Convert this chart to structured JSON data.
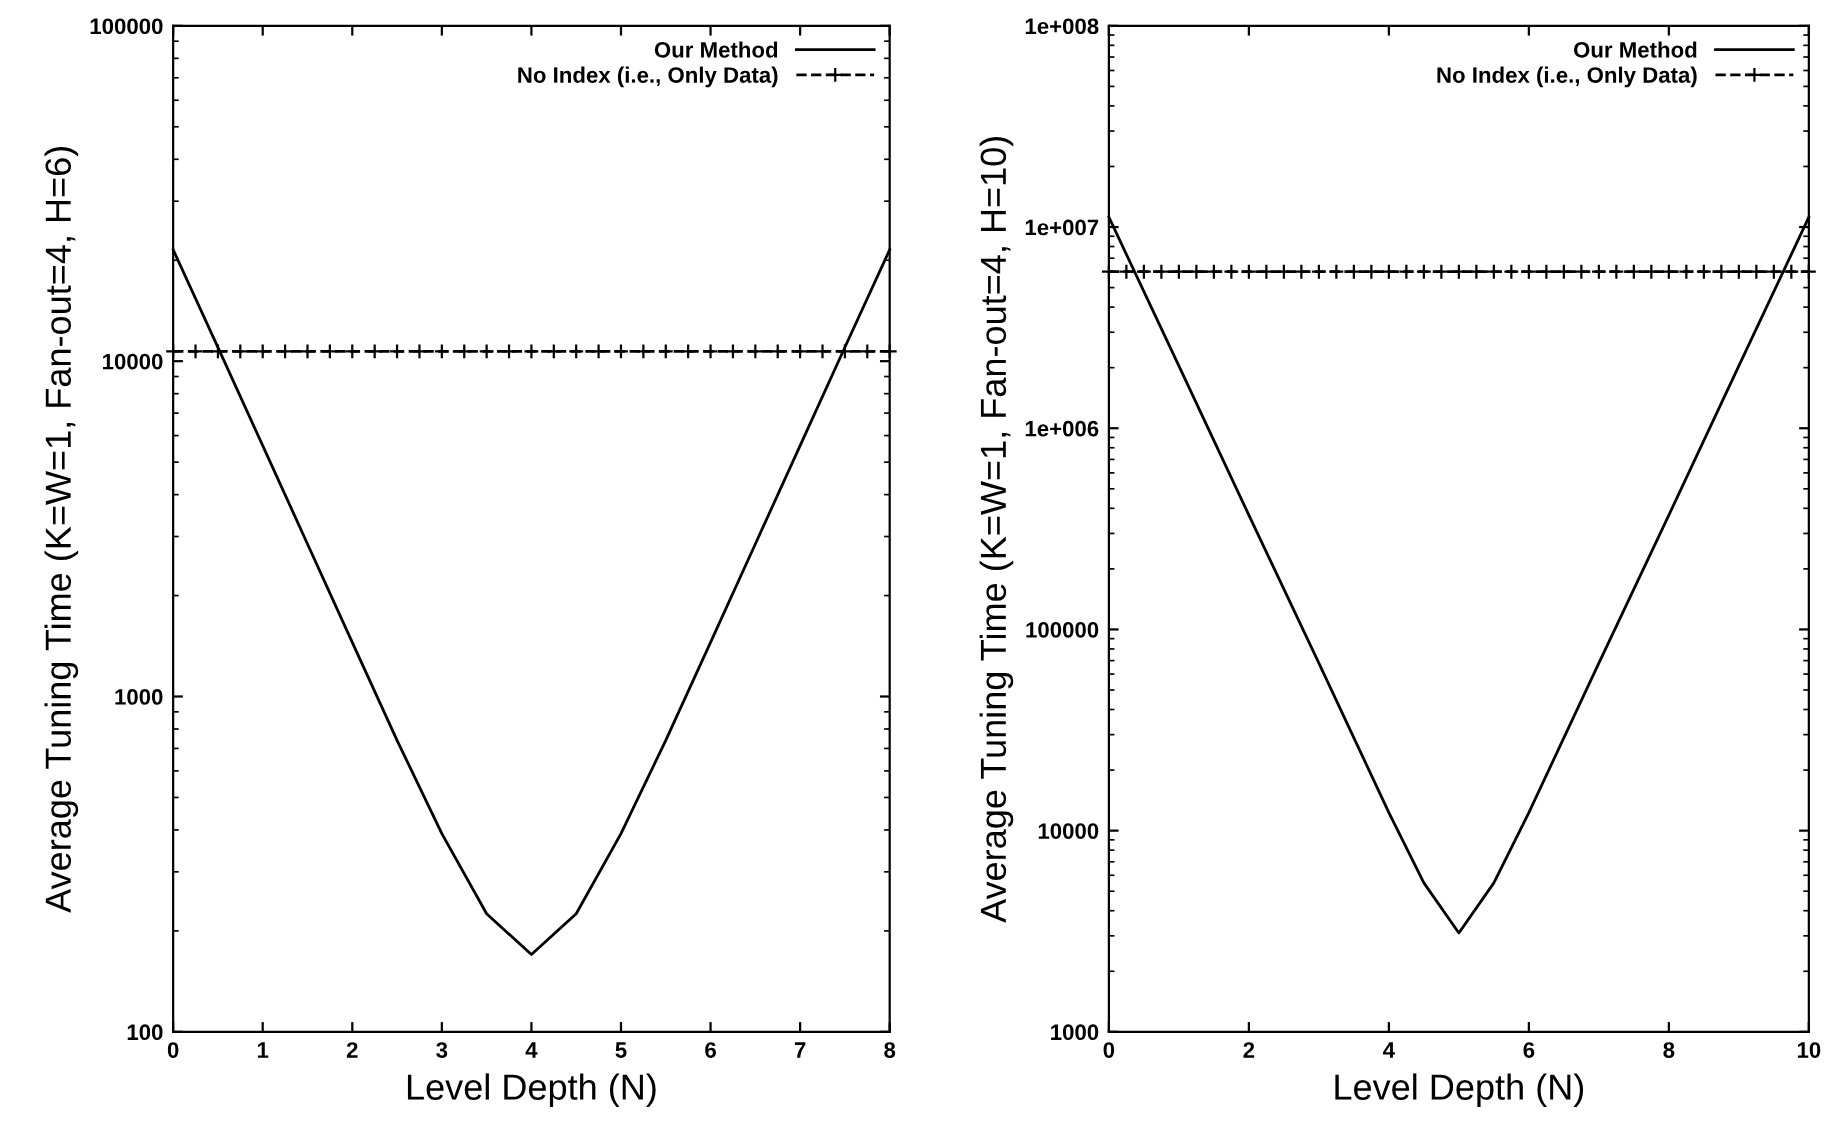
{
  "chart_data": [
    {
      "type": "line",
      "xlabel": "Level Depth (N)",
      "ylabel": "Average Tuning Time (K=W=1, Fan-out=4, H=6)",
      "log": "y",
      "xlim": [
        0,
        8
      ],
      "xticks": [
        0,
        1,
        2,
        3,
        4,
        5,
        6,
        7,
        8
      ],
      "ylim": [
        100,
        100000
      ],
      "yticks": [
        100,
        1000,
        10000,
        100000
      ],
      "legend": "top right",
      "grid": false,
      "series": [
        {
          "name": "Our Method",
          "color": "#000000",
          "line_style": "solid",
          "marker": "none",
          "x": [
            0,
            0.5,
            1,
            1.5,
            2,
            2.5,
            3,
            3.5,
            4,
            4.5,
            5,
            5.5,
            6,
            6.5,
            7,
            7.5,
            8
          ],
          "values": [
            21500,
            11000,
            5600,
            2850,
            1450,
            740,
            390,
            225,
            170,
            225,
            390,
            740,
            1450,
            2850,
            5600,
            11000,
            21500
          ]
        },
        {
          "name": "No Index (i.e., Only Data)",
          "color": "#000000",
          "line_style": "dashed",
          "marker": "cross",
          "x": [
            0,
            0.25,
            0.5,
            0.75,
            1,
            1.25,
            1.5,
            1.75,
            2,
            2.25,
            2.5,
            2.75,
            3,
            3.25,
            3.5,
            3.75,
            4,
            4.25,
            4.5,
            4.75,
            5,
            5.25,
            5.5,
            5.75,
            6,
            6.25,
            6.5,
            6.75,
            7,
            7.25,
            7.5,
            7.75,
            8
          ],
          "values": [
            10700,
            10700,
            10700,
            10700,
            10700,
            10700,
            10700,
            10700,
            10700,
            10700,
            10700,
            10700,
            10700,
            10700,
            10700,
            10700,
            10700,
            10700,
            10700,
            10700,
            10700,
            10700,
            10700,
            10700,
            10700,
            10700,
            10700,
            10700,
            10700,
            10700,
            10700,
            10700,
            10700
          ]
        }
      ]
    },
    {
      "type": "line",
      "xlabel": "Level Depth (N)",
      "ylabel": "Average Tuning Time (K=W=1, Fan-out=4, H=10)",
      "log": "y",
      "xlim": [
        0,
        10
      ],
      "xticks": [
        0,
        2,
        4,
        6,
        8,
        10
      ],
      "ylim": [
        1000,
        100000000
      ],
      "yticks": [
        1000,
        10000,
        100000,
        {
          "value": 1000000,
          "label": "1e+006"
        },
        {
          "value": 10000000,
          "label": "1e+007"
        },
        {
          "value": 100000000,
          "label": "1e+008"
        }
      ],
      "legend": "top right",
      "grid": false,
      "series": [
        {
          "name": "Our Method",
          "color": "#000000",
          "line_style": "solid",
          "marker": "none",
          "x": [
            0,
            1,
            2,
            3,
            4,
            4.5,
            5,
            5.5,
            6,
            7,
            8,
            9,
            10
          ],
          "values": [
            11200000,
            2040000,
            370000,
            68000,
            12300,
            5500,
            3100,
            5500,
            12300,
            68000,
            370000,
            2040000,
            11200000
          ]
        },
        {
          "name": "No Index (i.e., Only Data)",
          "color": "#000000",
          "line_style": "dashed",
          "marker": "cross",
          "x": [
            0,
            0.25,
            0.5,
            0.75,
            1,
            1.25,
            1.5,
            1.75,
            2,
            2.25,
            2.5,
            2.75,
            3,
            3.25,
            3.5,
            3.75,
            4,
            4.25,
            4.5,
            4.75,
            5,
            5.25,
            5.5,
            5.75,
            6,
            6.25,
            6.5,
            6.75,
            7,
            7.25,
            7.5,
            7.75,
            8,
            8.25,
            8.5,
            8.75,
            9,
            9.25,
            9.5,
            9.75,
            10
          ],
          "values": [
            6000000,
            6000000,
            6000000,
            6000000,
            6000000,
            6000000,
            6000000,
            6000000,
            6000000,
            6000000,
            6000000,
            6000000,
            6000000,
            6000000,
            6000000,
            6000000,
            6000000,
            6000000,
            6000000,
            6000000,
            6000000,
            6000000,
            6000000,
            6000000,
            6000000,
            6000000,
            6000000,
            6000000,
            6000000,
            6000000,
            6000000,
            6000000,
            6000000,
            6000000,
            6000000,
            6000000,
            6000000,
            6000000,
            6000000,
            6000000,
            6000000
          ]
        }
      ]
    }
  ]
}
